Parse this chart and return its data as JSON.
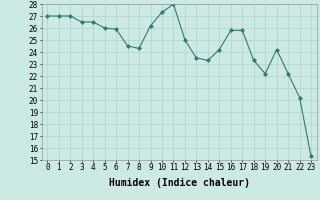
{
  "x": [
    0,
    1,
    2,
    3,
    4,
    5,
    6,
    7,
    8,
    9,
    10,
    11,
    12,
    13,
    14,
    15,
    16,
    17,
    18,
    19,
    20,
    21,
    22,
    23
  ],
  "y": [
    27.0,
    27.0,
    27.0,
    26.5,
    26.5,
    26.0,
    25.9,
    24.5,
    24.3,
    26.2,
    27.3,
    28.0,
    25.0,
    23.5,
    23.3,
    24.2,
    25.8,
    25.8,
    23.3,
    22.2,
    24.2,
    22.2,
    20.2,
    15.3
  ],
  "xlabel": "Humidex (Indice chaleur)",
  "ylim": [
    15,
    28
  ],
  "xlim_min": -0.5,
  "xlim_max": 23.5,
  "yticks": [
    15,
    16,
    17,
    18,
    19,
    20,
    21,
    22,
    23,
    24,
    25,
    26,
    27,
    28
  ],
  "xticks": [
    0,
    1,
    2,
    3,
    4,
    5,
    6,
    7,
    8,
    9,
    10,
    11,
    12,
    13,
    14,
    15,
    16,
    17,
    18,
    19,
    20,
    21,
    22,
    23
  ],
  "line_color": "#2e7d6e",
  "marker_color": "#2e7d6e",
  "bg_color": "#cce9e4",
  "grid_color": "#aad4cc",
  "tick_fontsize": 5.5,
  "xlabel_fontsize": 7
}
